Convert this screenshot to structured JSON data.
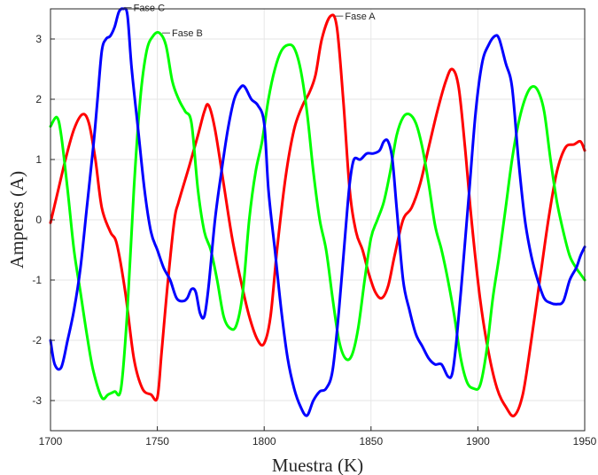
{
  "chart_data": {
    "type": "line",
    "title": "",
    "xlabel": "Muestra (K)",
    "ylabel": "Amperes (A)",
    "xlim": [
      1700,
      1950
    ],
    "ylim": [
      -3.5,
      3.5
    ],
    "xticks": [
      1700,
      1750,
      1800,
      1850,
      1900,
      1950
    ],
    "yticks": [
      -3,
      -2,
      -1,
      0,
      1,
      2,
      3
    ],
    "grid": true,
    "legend": "none",
    "annotations": [
      {
        "text": "Fase C",
        "x": 1733,
        "y": 3.52
      },
      {
        "text": "Fase B",
        "x": 1751,
        "y": 3.1
      },
      {
        "text": "Fase A",
        "x": 1832,
        "y": 3.38
      }
    ],
    "series": [
      {
        "name": "Fase A",
        "color": "#ff0000",
        "points": [
          [
            1700,
            -0.05
          ],
          [
            1703,
            0.4
          ],
          [
            1707,
            1.0
          ],
          [
            1711,
            1.5
          ],
          [
            1715,
            1.75
          ],
          [
            1718,
            1.6
          ],
          [
            1721,
            1.0
          ],
          [
            1724,
            0.2
          ],
          [
            1728,
            -0.2
          ],
          [
            1731,
            -0.4
          ],
          [
            1735,
            -1.2
          ],
          [
            1739,
            -2.3
          ],
          [
            1743,
            -2.8
          ],
          [
            1747,
            -2.9
          ],
          [
            1750,
            -2.95
          ],
          [
            1752,
            -2.2
          ],
          [
            1755,
            -1.0
          ],
          [
            1758,
            0.0
          ],
          [
            1760,
            0.3
          ],
          [
            1765,
            0.9
          ],
          [
            1769,
            1.4
          ],
          [
            1772,
            1.8
          ],
          [
            1774,
            1.9
          ],
          [
            1777,
            1.5
          ],
          [
            1781,
            0.6
          ],
          [
            1785,
            -0.3
          ],
          [
            1789,
            -1.0
          ],
          [
            1793,
            -1.6
          ],
          [
            1797,
            -2.0
          ],
          [
            1800,
            -2.05
          ],
          [
            1803,
            -1.6
          ],
          [
            1806,
            -0.5
          ],
          [
            1810,
            0.7
          ],
          [
            1814,
            1.5
          ],
          [
            1818,
            1.9
          ],
          [
            1821,
            2.1
          ],
          [
            1824,
            2.4
          ],
          [
            1827,
            3.0
          ],
          [
            1831,
            3.38
          ],
          [
            1834,
            3.2
          ],
          [
            1837,
            2.0
          ],
          [
            1840,
            0.5
          ],
          [
            1843,
            -0.2
          ],
          [
            1846,
            -0.5
          ],
          [
            1849,
            -0.9
          ],
          [
            1852,
            -1.2
          ],
          [
            1855,
            -1.3
          ],
          [
            1858,
            -1.1
          ],
          [
            1861,
            -0.6
          ],
          [
            1865,
            0.0
          ],
          [
            1869,
            0.2
          ],
          [
            1873,
            0.6
          ],
          [
            1877,
            1.2
          ],
          [
            1881,
            1.8
          ],
          [
            1885,
            2.3
          ],
          [
            1888,
            2.5
          ],
          [
            1891,
            2.2
          ],
          [
            1894,
            1.2
          ],
          [
            1897,
            0.0
          ],
          [
            1901,
            -1.3
          ],
          [
            1905,
            -2.2
          ],
          [
            1909,
            -2.8
          ],
          [
            1913,
            -3.1
          ],
          [
            1917,
            -3.25
          ],
          [
            1921,
            -2.9
          ],
          [
            1925,
            -2.0
          ],
          [
            1929,
            -1.0
          ],
          [
            1933,
            0.0
          ],
          [
            1937,
            0.8
          ],
          [
            1941,
            1.2
          ],
          [
            1945,
            1.25
          ],
          [
            1948,
            1.3
          ],
          [
            1950,
            1.15
          ]
        ]
      },
      {
        "name": "Fase B",
        "color": "#00ff00",
        "points": [
          [
            1700,
            1.55
          ],
          [
            1703,
            1.7
          ],
          [
            1705,
            1.4
          ],
          [
            1708,
            0.5
          ],
          [
            1711,
            -0.5
          ],
          [
            1714,
            -1.2
          ],
          [
            1717,
            -1.9
          ],
          [
            1720,
            -2.5
          ],
          [
            1724,
            -2.95
          ],
          [
            1727,
            -2.9
          ],
          [
            1730,
            -2.85
          ],
          [
            1733,
            -2.8
          ],
          [
            1736,
            -1.5
          ],
          [
            1739,
            0.5
          ],
          [
            1742,
            2.0
          ],
          [
            1745,
            2.8
          ],
          [
            1748,
            3.05
          ],
          [
            1751,
            3.1
          ],
          [
            1754,
            2.9
          ],
          [
            1757,
            2.3
          ],
          [
            1760,
            2.0
          ],
          [
            1763,
            1.8
          ],
          [
            1766,
            1.6
          ],
          [
            1769,
            0.5
          ],
          [
            1772,
            -0.2
          ],
          [
            1775,
            -0.5
          ],
          [
            1778,
            -1.0
          ],
          [
            1781,
            -1.6
          ],
          [
            1784,
            -1.8
          ],
          [
            1787,
            -1.75
          ],
          [
            1790,
            -1.2
          ],
          [
            1793,
            0.0
          ],
          [
            1796,
            0.8
          ],
          [
            1799,
            1.3
          ],
          [
            1802,
            2.0
          ],
          [
            1805,
            2.5
          ],
          [
            1808,
            2.8
          ],
          [
            1811,
            2.9
          ],
          [
            1814,
            2.85
          ],
          [
            1817,
            2.5
          ],
          [
            1820,
            1.8
          ],
          [
            1823,
            0.8
          ],
          [
            1826,
            0.0
          ],
          [
            1829,
            -0.5
          ],
          [
            1832,
            -1.3
          ],
          [
            1835,
            -2.0
          ],
          [
            1838,
            -2.3
          ],
          [
            1841,
            -2.25
          ],
          [
            1844,
            -1.8
          ],
          [
            1847,
            -1.0
          ],
          [
            1850,
            -0.3
          ],
          [
            1853,
            0.0
          ],
          [
            1856,
            0.3
          ],
          [
            1859,
            0.8
          ],
          [
            1862,
            1.4
          ],
          [
            1865,
            1.7
          ],
          [
            1868,
            1.75
          ],
          [
            1871,
            1.6
          ],
          [
            1874,
            1.2
          ],
          [
            1877,
            0.6
          ],
          [
            1880,
            -0.1
          ],
          [
            1883,
            -0.5
          ],
          [
            1886,
            -1.0
          ],
          [
            1889,
            -1.6
          ],
          [
            1892,
            -2.3
          ],
          [
            1895,
            -2.7
          ],
          [
            1898,
            -2.8
          ],
          [
            1901,
            -2.75
          ],
          [
            1904,
            -2.2
          ],
          [
            1907,
            -1.3
          ],
          [
            1910,
            -0.6
          ],
          [
            1913,
            0.2
          ],
          [
            1916,
            1.0
          ],
          [
            1919,
            1.6
          ],
          [
            1922,
            2.0
          ],
          [
            1925,
            2.2
          ],
          [
            1928,
            2.15
          ],
          [
            1931,
            1.8
          ],
          [
            1934,
            1.0
          ],
          [
            1937,
            0.3
          ],
          [
            1940,
            -0.2
          ],
          [
            1943,
            -0.6
          ],
          [
            1946,
            -0.8
          ],
          [
            1948,
            -0.9
          ],
          [
            1950,
            -1.0
          ]
        ]
      },
      {
        "name": "Fase C",
        "color": "#0000ff",
        "points": [
          [
            1700,
            -2.0
          ],
          [
            1702,
            -2.4
          ],
          [
            1705,
            -2.45
          ],
          [
            1708,
            -2.0
          ],
          [
            1711,
            -1.5
          ],
          [
            1714,
            -0.8
          ],
          [
            1717,
            0.2
          ],
          [
            1720,
            1.2
          ],
          [
            1722,
            2.0
          ],
          [
            1724,
            2.8
          ],
          [
            1726,
            3.0
          ],
          [
            1728,
            3.05
          ],
          [
            1730,
            3.2
          ],
          [
            1732,
            3.45
          ],
          [
            1734,
            3.5
          ],
          [
            1736,
            3.4
          ],
          [
            1738,
            2.5
          ],
          [
            1741,
            1.5
          ],
          [
            1744,
            0.5
          ],
          [
            1747,
            -0.2
          ],
          [
            1750,
            -0.5
          ],
          [
            1753,
            -0.8
          ],
          [
            1756,
            -1.0
          ],
          [
            1759,
            -1.3
          ],
          [
            1762,
            -1.35
          ],
          [
            1764,
            -1.3
          ],
          [
            1766,
            -1.15
          ],
          [
            1768,
            -1.2
          ],
          [
            1770,
            -1.55
          ],
          [
            1772,
            -1.6
          ],
          [
            1774,
            -1.1
          ],
          [
            1777,
            0.0
          ],
          [
            1780,
            0.8
          ],
          [
            1783,
            1.5
          ],
          [
            1786,
            2.0
          ],
          [
            1789,
            2.2
          ],
          [
            1791,
            2.2
          ],
          [
            1794,
            2.0
          ],
          [
            1797,
            1.9
          ],
          [
            1800,
            1.6
          ],
          [
            1802,
            0.5
          ],
          [
            1805,
            -0.5
          ],
          [
            1808,
            -1.5
          ],
          [
            1811,
            -2.3
          ],
          [
            1814,
            -2.8
          ],
          [
            1817,
            -3.1
          ],
          [
            1820,
            -3.25
          ],
          [
            1823,
            -3.0
          ],
          [
            1826,
            -2.85
          ],
          [
            1829,
            -2.8
          ],
          [
            1832,
            -2.5
          ],
          [
            1835,
            -1.5
          ],
          [
            1838,
            -0.2
          ],
          [
            1840,
            0.6
          ],
          [
            1842,
            1.0
          ],
          [
            1845,
            1.0
          ],
          [
            1848,
            1.1
          ],
          [
            1851,
            1.1
          ],
          [
            1854,
            1.15
          ],
          [
            1856,
            1.3
          ],
          [
            1858,
            1.3
          ],
          [
            1860,
            1.0
          ],
          [
            1862,
            0.2
          ],
          [
            1865,
            -1.0
          ],
          [
            1868,
            -1.5
          ],
          [
            1871,
            -1.9
          ],
          [
            1874,
            -2.1
          ],
          [
            1877,
            -2.3
          ],
          [
            1880,
            -2.4
          ],
          [
            1883,
            -2.4
          ],
          [
            1886,
            -2.6
          ],
          [
            1888,
            -2.55
          ],
          [
            1890,
            -2.0
          ],
          [
            1893,
            -0.8
          ],
          [
            1896,
            0.5
          ],
          [
            1899,
            1.8
          ],
          [
            1902,
            2.6
          ],
          [
            1905,
            2.9
          ],
          [
            1908,
            3.05
          ],
          [
            1910,
            3.0
          ],
          [
            1913,
            2.6
          ],
          [
            1916,
            2.2
          ],
          [
            1919,
            1.0
          ],
          [
            1922,
            0.0
          ],
          [
            1925,
            -0.6
          ],
          [
            1928,
            -1.0
          ],
          [
            1931,
            -1.3
          ],
          [
            1934,
            -1.38
          ],
          [
            1937,
            -1.4
          ],
          [
            1940,
            -1.35
          ],
          [
            1943,
            -1.0
          ],
          [
            1946,
            -0.8
          ],
          [
            1948,
            -0.6
          ],
          [
            1950,
            -0.45
          ]
        ]
      }
    ]
  }
}
